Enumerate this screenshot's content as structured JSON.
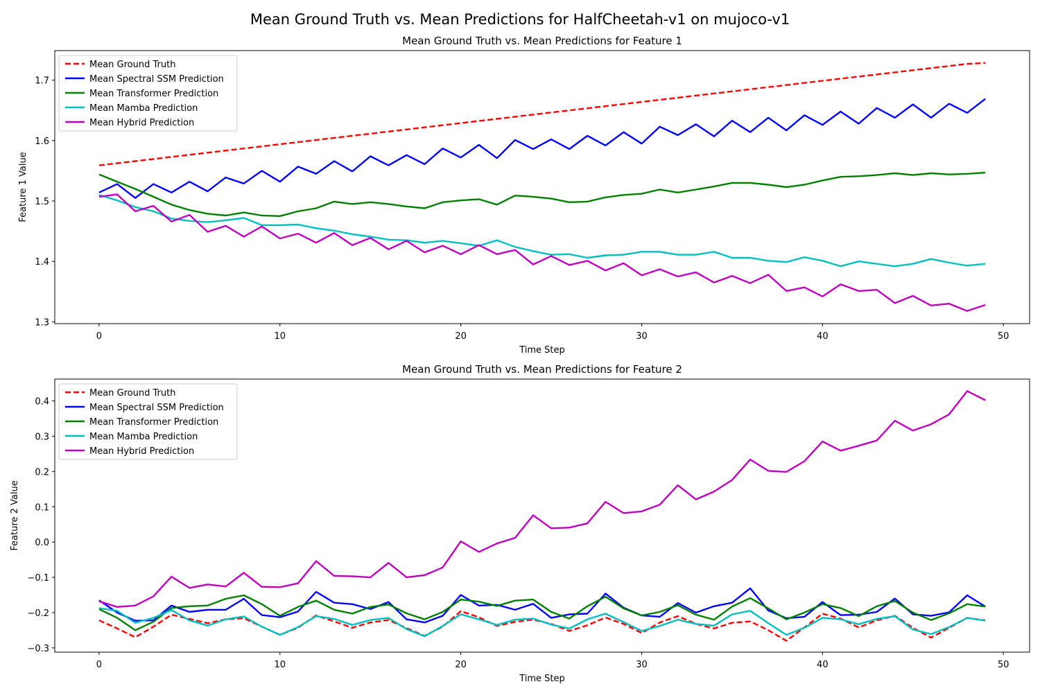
{
  "figure": {
    "suptitle": "Mean Ground Truth vs. Mean Predictions for HalfCheetah-v1 on mujoco-v1"
  },
  "colors": {
    "ground_truth": "#ff0000",
    "spectral": "#0000ff",
    "transformer": "#008000",
    "mamba": "#00bfbf",
    "hybrid": "#bf00bf"
  },
  "chart_data": [
    {
      "type": "line",
      "title": "Mean Ground Truth vs. Mean Predictions for Feature 1",
      "xlabel": "Time Step",
      "ylabel": "Feature 1 Value",
      "xlim": [
        -2.45,
        51.45
      ],
      "ylim": [
        1.297,
        1.749
      ],
      "xticks": [
        0,
        10,
        20,
        30,
        40,
        50
      ],
      "yticks": [
        1.3,
        1.4,
        1.5,
        1.6,
        1.7
      ],
      "ytick_labels": [
        "1.3",
        "1.4",
        "1.5",
        "1.6",
        "1.7"
      ],
      "legend": "upper-left",
      "grid": false,
      "x": [
        0,
        1,
        2,
        3,
        4,
        5,
        6,
        7,
        8,
        9,
        10,
        11,
        12,
        13,
        14,
        15,
        16,
        17,
        18,
        19,
        20,
        21,
        22,
        23,
        24,
        25,
        26,
        27,
        28,
        29,
        30,
        31,
        32,
        33,
        34,
        35,
        36,
        37,
        38,
        39,
        40,
        41,
        42,
        43,
        44,
        45,
        46,
        47,
        48,
        49
      ],
      "series": [
        {
          "name": "Mean Ground Truth",
          "color": "#ff0000",
          "dashed": true,
          "values": [
            1.559,
            1.5625,
            1.566,
            1.5695,
            1.573,
            1.5765,
            1.58,
            1.5835,
            1.587,
            1.5905,
            1.594,
            1.5975,
            1.601,
            1.6045,
            1.608,
            1.6115,
            1.615,
            1.6185,
            1.622,
            1.6255,
            1.629,
            1.6325,
            1.636,
            1.6395,
            1.643,
            1.6465,
            1.65,
            1.6535,
            1.657,
            1.6605,
            1.664,
            1.6675,
            1.671,
            1.6745,
            1.678,
            1.6815,
            1.685,
            1.6885,
            1.692,
            1.6955,
            1.699,
            1.7025,
            1.706,
            1.7095,
            1.713,
            1.7165,
            1.72,
            1.7235,
            1.727,
            1.7285
          ]
        },
        {
          "name": "Mean Spectral SSM Prediction",
          "color": "#0000ff",
          "dashed": false,
          "values": [
            1.514,
            1.528,
            1.505,
            1.528,
            1.514,
            1.532,
            1.516,
            1.539,
            1.529,
            1.55,
            1.532,
            1.557,
            1.545,
            1.566,
            1.549,
            1.574,
            1.559,
            1.576,
            1.561,
            1.587,
            1.572,
            1.593,
            1.571,
            1.601,
            1.586,
            1.602,
            1.586,
            1.608,
            1.592,
            1.614,
            1.595,
            1.623,
            1.609,
            1.627,
            1.607,
            1.633,
            1.614,
            1.638,
            1.617,
            1.642,
            1.626,
            1.648,
            1.628,
            1.654,
            1.638,
            1.66,
            1.638,
            1.661,
            1.646,
            1.669
          ]
        },
        {
          "name": "Mean Transformer Prediction",
          "color": "#008000",
          "dashed": false,
          "values": [
            1.544,
            1.532,
            1.52,
            1.507,
            1.494,
            1.485,
            1.479,
            1.476,
            1.481,
            1.476,
            1.475,
            1.483,
            1.488,
            1.499,
            1.495,
            1.498,
            1.495,
            1.491,
            1.488,
            1.498,
            1.501,
            1.503,
            1.494,
            1.509,
            1.507,
            1.504,
            1.498,
            1.499,
            1.506,
            1.51,
            1.512,
            1.519,
            1.514,
            1.519,
            1.524,
            1.53,
            1.53,
            1.527,
            1.523,
            1.527,
            1.534,
            1.54,
            1.541,
            1.543,
            1.546,
            1.543,
            1.546,
            1.544,
            1.545,
            1.547
          ]
        },
        {
          "name": "Mean Mamba Prediction",
          "color": "#00bfbf",
          "dashed": false,
          "values": [
            1.51,
            1.501,
            1.49,
            1.483,
            1.471,
            1.467,
            1.465,
            1.468,
            1.472,
            1.46,
            1.46,
            1.461,
            1.455,
            1.451,
            1.445,
            1.441,
            1.436,
            1.435,
            1.431,
            1.434,
            1.43,
            1.426,
            1.435,
            1.424,
            1.417,
            1.411,
            1.412,
            1.406,
            1.41,
            1.411,
            1.416,
            1.416,
            1.411,
            1.411,
            1.416,
            1.406,
            1.406,
            1.401,
            1.399,
            1.407,
            1.401,
            1.392,
            1.4,
            1.396,
            1.392,
            1.396,
            1.404,
            1.398,
            1.393,
            1.396
          ]
        },
        {
          "name": "Mean Hybrid Prediction",
          "color": "#bf00bf",
          "dashed": false,
          "values": [
            1.507,
            1.511,
            1.483,
            1.492,
            1.466,
            1.477,
            1.449,
            1.459,
            1.441,
            1.458,
            1.438,
            1.446,
            1.431,
            1.447,
            1.427,
            1.439,
            1.42,
            1.434,
            1.415,
            1.426,
            1.412,
            1.427,
            1.412,
            1.419,
            1.395,
            1.409,
            1.394,
            1.401,
            1.385,
            1.397,
            1.377,
            1.387,
            1.375,
            1.382,
            1.365,
            1.376,
            1.364,
            1.378,
            1.351,
            1.357,
            1.342,
            1.362,
            1.351,
            1.353,
            1.331,
            1.343,
            1.327,
            1.33,
            1.318,
            1.328
          ]
        }
      ]
    },
    {
      "type": "line",
      "title": "Mean Ground Truth vs. Mean Predictions for Feature 2",
      "xlabel": "Time Step",
      "ylabel": "Feature 2 Value",
      "xlim": [
        -2.45,
        51.45
      ],
      "ylim": [
        -0.312,
        0.462
      ],
      "xticks": [
        0,
        10,
        20,
        30,
        40,
        50
      ],
      "yticks": [
        -0.3,
        -0.2,
        -0.1,
        0.0,
        0.1,
        0.2,
        0.3,
        0.4
      ],
      "ytick_labels": [
        "−0.3",
        "−0.2",
        "−0.1",
        "0.0",
        "0.1",
        "0.2",
        "0.3",
        "0.4"
      ],
      "legend": "upper-left",
      "grid": false,
      "x": [
        0,
        1,
        2,
        3,
        4,
        5,
        6,
        7,
        8,
        9,
        10,
        11,
        12,
        13,
        14,
        15,
        16,
        17,
        18,
        19,
        20,
        21,
        22,
        23,
        24,
        25,
        26,
        27,
        28,
        29,
        30,
        31,
        32,
        33,
        34,
        35,
        36,
        37,
        38,
        39,
        40,
        41,
        42,
        43,
        44,
        45,
        46,
        47,
        48,
        49
      ],
      "series": [
        {
          "name": "Mean Ground Truth",
          "color": "#ff0000",
          "dashed": true,
          "values": [
            -0.222,
            -0.245,
            -0.27,
            -0.24,
            -0.206,
            -0.218,
            -0.23,
            -0.219,
            -0.216,
            -0.24,
            -0.263,
            -0.243,
            -0.208,
            -0.225,
            -0.243,
            -0.228,
            -0.221,
            -0.244,
            -0.266,
            -0.24,
            -0.196,
            -0.213,
            -0.238,
            -0.226,
            -0.22,
            -0.232,
            -0.252,
            -0.236,
            -0.214,
            -0.232,
            -0.258,
            -0.228,
            -0.21,
            -0.232,
            -0.245,
            -0.229,
            -0.225,
            -0.25,
            -0.28,
            -0.242,
            -0.203,
            -0.217,
            -0.242,
            -0.222,
            -0.209,
            -0.243,
            -0.271,
            -0.243,
            -0.215,
            -0.222
          ]
        },
        {
          "name": "Mean Spectral SSM Prediction",
          "color": "#0000ff",
          "dashed": false,
          "values": [
            -0.165,
            -0.2,
            -0.223,
            -0.222,
            -0.18,
            -0.198,
            -0.192,
            -0.192,
            -0.161,
            -0.207,
            -0.213,
            -0.197,
            -0.141,
            -0.172,
            -0.176,
            -0.19,
            -0.17,
            -0.219,
            -0.228,
            -0.209,
            -0.15,
            -0.18,
            -0.178,
            -0.192,
            -0.175,
            -0.215,
            -0.205,
            -0.203,
            -0.146,
            -0.186,
            -0.208,
            -0.212,
            -0.173,
            -0.2,
            -0.182,
            -0.172,
            -0.131,
            -0.194,
            -0.216,
            -0.212,
            -0.17,
            -0.207,
            -0.206,
            -0.198,
            -0.16,
            -0.205,
            -0.209,
            -0.199,
            -0.151,
            -0.183
          ]
        },
        {
          "name": "Mean Transformer Prediction",
          "color": "#008000",
          "dashed": false,
          "values": [
            -0.19,
            -0.215,
            -0.25,
            -0.226,
            -0.187,
            -0.182,
            -0.18,
            -0.161,
            -0.151,
            -0.176,
            -0.209,
            -0.184,
            -0.166,
            -0.192,
            -0.203,
            -0.184,
            -0.177,
            -0.202,
            -0.219,
            -0.198,
            -0.163,
            -0.169,
            -0.181,
            -0.166,
            -0.163,
            -0.198,
            -0.217,
            -0.182,
            -0.155,
            -0.188,
            -0.208,
            -0.198,
            -0.179,
            -0.206,
            -0.22,
            -0.183,
            -0.159,
            -0.188,
            -0.219,
            -0.2,
            -0.176,
            -0.187,
            -0.21,
            -0.182,
            -0.167,
            -0.2,
            -0.221,
            -0.202,
            -0.176,
            -0.183
          ]
        },
        {
          "name": "Mean Mamba Prediction",
          "color": "#00bfbf",
          "dashed": false,
          "values": [
            -0.187,
            -0.195,
            -0.229,
            -0.215,
            -0.193,
            -0.222,
            -0.237,
            -0.219,
            -0.211,
            -0.24,
            -0.263,
            -0.241,
            -0.21,
            -0.218,
            -0.235,
            -0.221,
            -0.215,
            -0.247,
            -0.267,
            -0.238,
            -0.205,
            -0.219,
            -0.235,
            -0.22,
            -0.217,
            -0.234,
            -0.245,
            -0.219,
            -0.203,
            -0.227,
            -0.252,
            -0.238,
            -0.22,
            -0.232,
            -0.237,
            -0.205,
            -0.195,
            -0.23,
            -0.263,
            -0.243,
            -0.215,
            -0.219,
            -0.233,
            -0.218,
            -0.21,
            -0.248,
            -0.261,
            -0.241,
            -0.215,
            -0.223
          ]
        },
        {
          "name": "Mean Hybrid Prediction",
          "color": "#bf00bf",
          "dashed": false,
          "values": [
            -0.168,
            -0.184,
            -0.18,
            -0.154,
            -0.098,
            -0.13,
            -0.12,
            -0.126,
            -0.087,
            -0.127,
            -0.128,
            -0.117,
            -0.054,
            -0.096,
            -0.097,
            -0.1,
            -0.059,
            -0.1,
            -0.094,
            -0.072,
            0.002,
            -0.028,
            -0.004,
            0.012,
            0.076,
            0.039,
            0.041,
            0.053,
            0.114,
            0.082,
            0.087,
            0.106,
            0.161,
            0.121,
            0.143,
            0.176,
            0.234,
            0.202,
            0.199,
            0.229,
            0.285,
            0.259,
            0.273,
            0.288,
            0.344,
            0.316,
            0.334,
            0.362,
            0.428,
            0.402
          ]
        }
      ]
    }
  ]
}
